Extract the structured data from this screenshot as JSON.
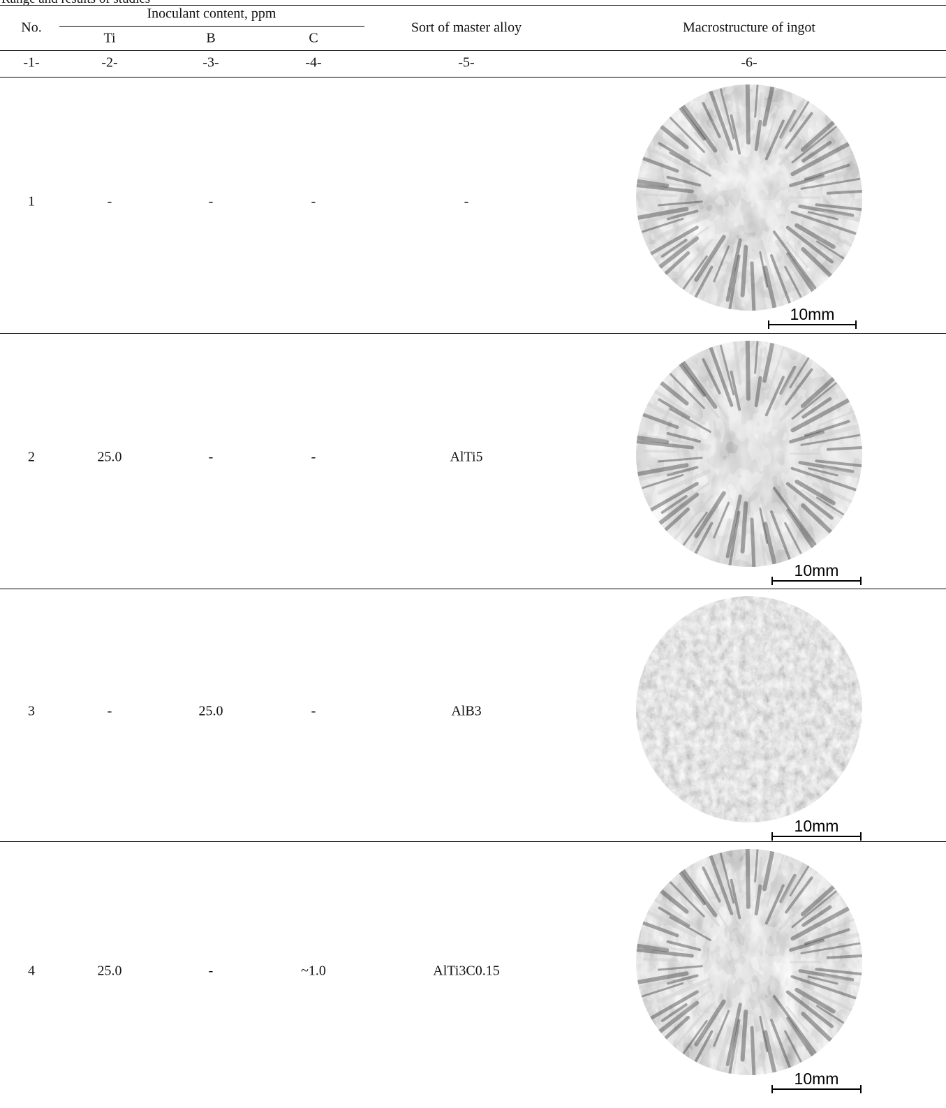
{
  "caption": "Range and results of studies",
  "header": {
    "no": "No.",
    "group": "Inoculant content, ppm",
    "ti": "Ti",
    "b": "B",
    "c": "C",
    "alloy": "Sort of master alloy",
    "macro": "Macrostructure of ingot"
  },
  "numbers": [
    "-1-",
    "-2-",
    "-3-",
    "-4-",
    "-5-",
    "-6-"
  ],
  "rows": [
    {
      "cells": [
        "1",
        "-",
        "-",
        "-",
        "-"
      ],
      "scale": "10mm"
    },
    {
      "cells": [
        "2",
        "25.0",
        "-",
        "-",
        "AlTi5"
      ],
      "scale": "10mm"
    },
    {
      "cells": [
        "3",
        "-",
        "25.0",
        "-",
        "AlB3"
      ],
      "scale": "10mm"
    },
    {
      "cells": [
        "4",
        "25.0",
        "-",
        "~1.0",
        "AlTi3C0.15"
      ],
      "scale": "10mm"
    }
  ]
}
